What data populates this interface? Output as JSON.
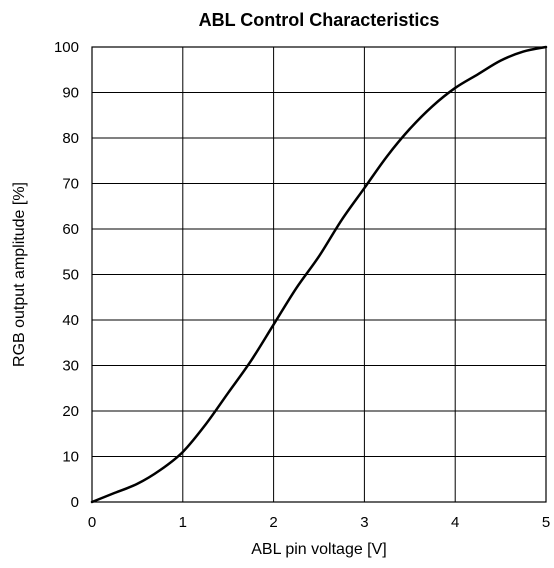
{
  "chart_data": {
    "type": "line",
    "title": "ABL Control Characteristics",
    "xlabel": "ABL pin voltage [V]",
    "ylabel": "RGB output amplitude [%]",
    "xlim": [
      0,
      5
    ],
    "ylim": [
      0,
      100
    ],
    "x_ticks": [
      0,
      1,
      2,
      3,
      4,
      5
    ],
    "y_ticks": [
      0,
      10,
      20,
      30,
      40,
      50,
      60,
      70,
      80,
      90,
      100
    ],
    "grid": true,
    "legend": "none",
    "series": [
      {
        "x": [
          0,
          0.25,
          0.5,
          0.75,
          1.0,
          1.25,
          1.5,
          1.75,
          2.0,
          2.25,
          2.5,
          2.75,
          3.0,
          3.25,
          3.5,
          3.75,
          4.0,
          4.25,
          4.5,
          4.75,
          5.0
        ],
        "y": [
          0,
          2,
          4,
          7,
          11,
          17,
          24,
          31,
          39,
          47,
          54,
          62,
          69,
          76,
          82,
          87,
          91,
          94,
          97,
          99,
          100
        ],
        "color": "#000000"
      }
    ]
  }
}
